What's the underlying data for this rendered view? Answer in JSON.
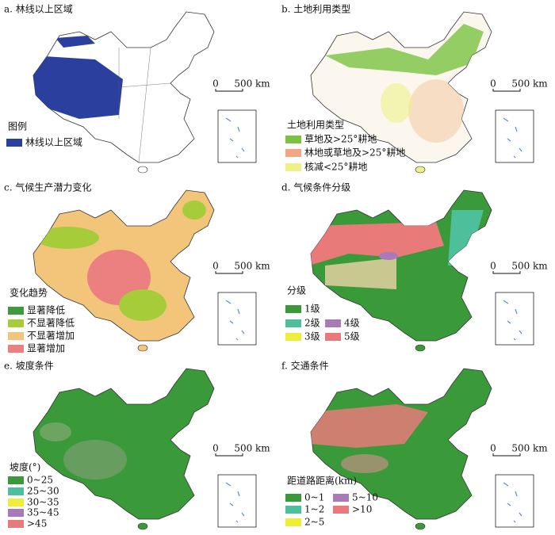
{
  "panels": [
    {
      "title": "a. 林线以上区域",
      "legend_title": "图例",
      "legend": [
        {
          "label": "林线以上区域",
          "color": "#2b3f9e"
        }
      ],
      "scale": [
        "0",
        "500 km"
      ]
    },
    {
      "title": "b. 土地利用类型",
      "legend_title": "土地利用类型",
      "legend": [
        {
          "label": "草地及>25°耕地",
          "color": "#7cc242"
        },
        {
          "label": "林地或草地及>25°耕地",
          "color": "#f4a582"
        },
        {
          "label": "核减<25°耕地",
          "color": "#eef08a"
        }
      ],
      "scale": [
        "0",
        "500 km"
      ]
    },
    {
      "title": "c. 气候生产潜力变化",
      "legend_title": "变化趋势",
      "legend": [
        {
          "label": "显著降低",
          "color": "#3d9a3d"
        },
        {
          "label": "不显著降低",
          "color": "#a6cc3a"
        },
        {
          "label": "不显著增加",
          "color": "#f3c57a"
        },
        {
          "label": "显著增加",
          "color": "#ec7f7f"
        }
      ],
      "scale": [
        "0",
        "500 km"
      ]
    },
    {
      "title": "d. 气候条件分级",
      "legend_title": "分级",
      "legend": [
        {
          "label": "1级",
          "color": "#3a9a3a"
        },
        {
          "label": "2级",
          "color": "#4dbf9a"
        },
        {
          "label": "4级",
          "color": "#a87ab8"
        },
        {
          "label": "3级",
          "color": "#eeee3a"
        },
        {
          "label": "5级",
          "color": "#e87a7a"
        }
      ],
      "scale": [
        "0",
        "500 km"
      ]
    },
    {
      "title": "e. 坡度条件",
      "legend_title": "坡度(°)",
      "legend": [
        {
          "label": "0~25",
          "color": "#3a9a3a"
        },
        {
          "label": "25~30",
          "color": "#4dbf9a"
        },
        {
          "label": "30~35",
          "color": "#eeee3a"
        },
        {
          "label": "35~45",
          "color": "#a87ab8"
        },
        {
          "label": ">45",
          "color": "#e87a7a"
        }
      ],
      "scale": [
        "0",
        "500 km"
      ]
    },
    {
      "title": "f. 交通条件",
      "legend_title": "距道路距离(km)",
      "legend": [
        {
          "label": "0~1",
          "color": "#3a9a3a"
        },
        {
          "label": "5~10",
          "color": "#a87ab8"
        },
        {
          "label": "1~2",
          "color": "#4dbf9a"
        },
        {
          "label": ">10",
          "color": "#e87a7a"
        },
        {
          "label": "2~5",
          "color": "#eeee3a"
        }
      ],
      "scale": [
        "0",
        "500 km"
      ]
    }
  ]
}
